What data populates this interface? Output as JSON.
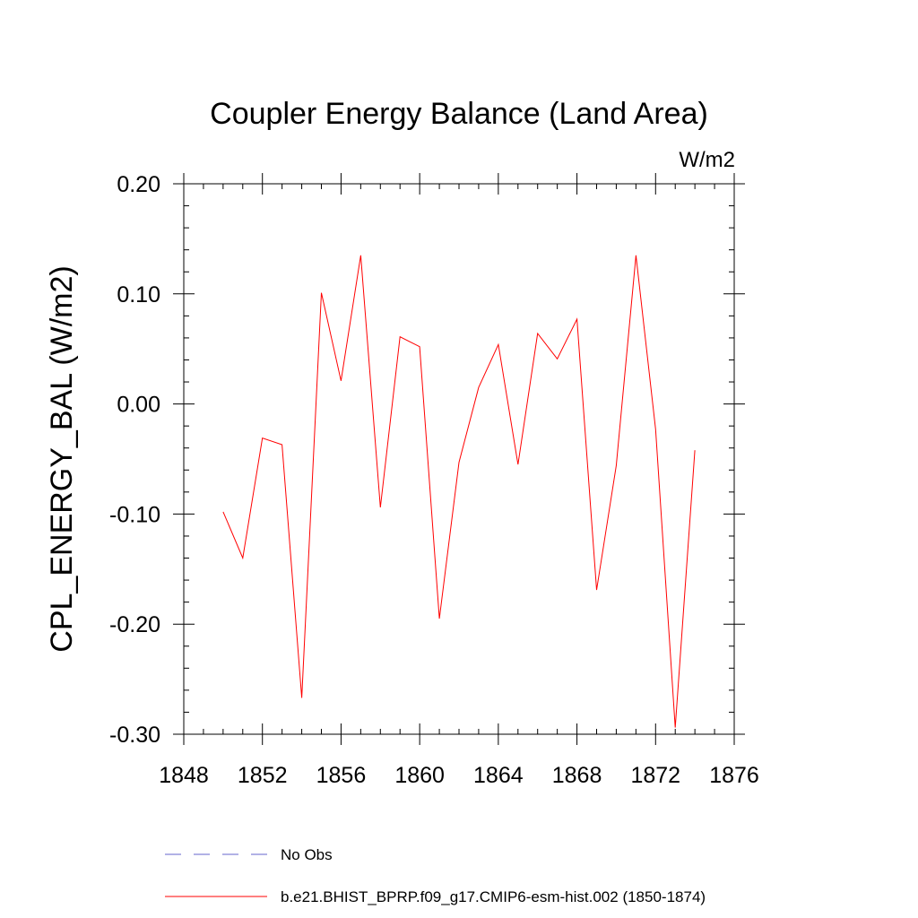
{
  "chart_data": {
    "type": "line",
    "title": "Coupler Energy Balance (Land Area)",
    "units": "W/m2",
    "ylabel": "CPL_ENERGY_BAL  (W/m2)",
    "xlabel": "",
    "xlim": [
      1848,
      1876
    ],
    "ylim": [
      -0.3,
      0.2
    ],
    "x_ticks": [
      1848,
      1852,
      1856,
      1860,
      1864,
      1868,
      1872,
      1876
    ],
    "x_tick_labels": [
      "1848",
      "1852",
      "1856",
      "1860",
      "1864",
      "1868",
      "1872",
      "1876"
    ],
    "y_ticks": [
      -0.3,
      -0.2,
      -0.1,
      0.0,
      0.1,
      0.2
    ],
    "y_tick_labels": [
      "-0.30",
      "-0.20",
      "-0.10",
      "0.00",
      "0.10",
      "0.20"
    ],
    "grid": false,
    "legend_position": "bottom",
    "series": [
      {
        "name": "b.e21.BHIST_BPRP.f09_g17.CMIP6-esm-hist.002 (1850-1874)",
        "color": "#ff0000",
        "style": "solid",
        "x": [
          1850,
          1851,
          1852,
          1853,
          1854,
          1855,
          1856,
          1857,
          1858,
          1859,
          1860,
          1861,
          1862,
          1863,
          1864,
          1865,
          1866,
          1867,
          1868,
          1869,
          1870,
          1871,
          1872,
          1873,
          1874
        ],
        "y": [
          -0.098,
          -0.14,
          -0.031,
          -0.037,
          -0.267,
          0.101,
          0.021,
          0.135,
          -0.094,
          0.061,
          0.052,
          -0.195,
          -0.053,
          0.015,
          0.054,
          -0.055,
          0.064,
          0.041,
          0.077,
          -0.169,
          -0.056,
          0.135,
          -0.023,
          -0.294,
          -0.042
        ]
      }
    ],
    "legend": [
      {
        "label": "No Obs",
        "color": "#6666cc",
        "style": "dashed"
      },
      {
        "label": "b.e21.BHIST_BPRP.f09_g17.CMIP6-esm-hist.002 (1850-1874)",
        "color": "#ff0000",
        "style": "solid"
      }
    ]
  }
}
